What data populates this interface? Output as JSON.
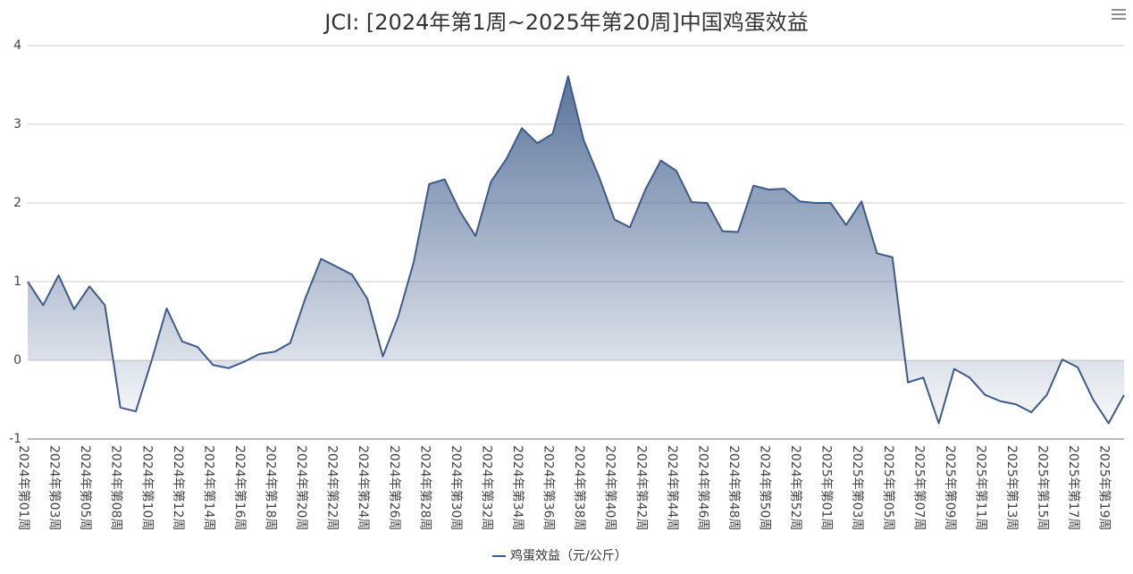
{
  "chart_data": {
    "type": "line",
    "title": "JCI: [2024年第1周~2025年第20周]中国鸡蛋效益",
    "categories": [
      "2024年第01周",
      null,
      "2024年第03周",
      null,
      "2024年第05周",
      null,
      "2024年第08周",
      null,
      "2024年第10周",
      null,
      "2024年第12周",
      null,
      "2024年第14周",
      null,
      "2024年第16周",
      null,
      "2024年第18周",
      null,
      "2024年第20周",
      null,
      "2024年第22周",
      null,
      "2024年第24周",
      null,
      "2024年第26周",
      null,
      "2024年第28周",
      null,
      "2024年第30周",
      null,
      "2024年第32周",
      null,
      "2024年第34周",
      null,
      "2024年第36周",
      null,
      "2024年第38周",
      null,
      "2024年第40周",
      null,
      "2024年第42周",
      null,
      "2024年第44周",
      null,
      "2024年第46周",
      null,
      "2024年第48周",
      null,
      "2024年第50周",
      null,
      "2024年第52周",
      null,
      "2025年第01周",
      null,
      "2025年第03周",
      null,
      "2025年第05周",
      null,
      "2025年第07周",
      null,
      "2025年第09周",
      null,
      "2025年第11周",
      null,
      "2025年第13周",
      null,
      "2025年第15周",
      null,
      "2025年第17周",
      null,
      "2025年第19周",
      null
    ],
    "series": [
      {
        "name": "鸡蛋效益（元/公斤）",
        "color": "#3d5b8a",
        "values": [
          1.0,
          0.7,
          1.08,
          0.65,
          0.94,
          0.7,
          -0.6,
          -0.65,
          -0.02,
          0.66,
          0.24,
          0.17,
          -0.06,
          -0.1,
          -0.02,
          0.08,
          0.11,
          0.22,
          0.8,
          1.29,
          1.19,
          1.09,
          0.78,
          0.05,
          0.56,
          1.25,
          2.24,
          2.3,
          1.89,
          1.58,
          2.27,
          2.56,
          2.95,
          2.76,
          2.88,
          3.61,
          2.8,
          2.33,
          1.79,
          1.69,
          2.17,
          2.54,
          2.41,
          2.01,
          2.0,
          1.64,
          1.63,
          2.22,
          2.17,
          2.18,
          2.02,
          2.0,
          2.0,
          1.72,
          2.02,
          1.36,
          1.31,
          -0.28,
          -0.22,
          -0.8,
          -0.11,
          -0.22,
          -0.44,
          -0.52,
          -0.56,
          -0.66,
          -0.44,
          0.01,
          -0.09,
          -0.5,
          -0.8,
          -0.44
        ]
      }
    ],
    "ylim": [
      -1,
      4
    ],
    "yticks": [
      -1,
      0,
      1,
      2,
      3,
      4
    ],
    "grid": true,
    "area": true,
    "legend": "bottom"
  }
}
